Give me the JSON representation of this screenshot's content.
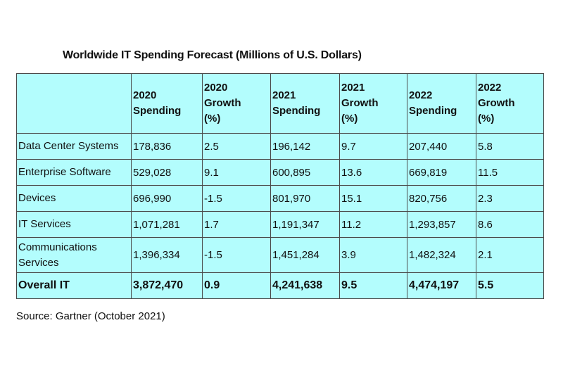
{
  "chart_data": {
    "type": "table",
    "title": "Worldwide IT Spending Forecast (Millions of U.S. Dollars)",
    "columns": [
      "",
      "2020 Spending",
      "2020 Growth (%)",
      "2021 Spending",
      "2021 Growth (%)",
      "2022 Spending",
      "2022 Growth (%)"
    ],
    "header_lines": [
      [],
      [
        "2020",
        "Spending"
      ],
      [
        "2020",
        "Growth",
        "(%)"
      ],
      [
        "2021",
        "Spending"
      ],
      [
        "2021",
        "Growth",
        "(%)"
      ],
      [
        "2022",
        "Spending"
      ],
      [
        "2022",
        "Growth",
        "(%)"
      ]
    ],
    "rows": [
      {
        "category": "Data Center Systems",
        "values": [
          "178,836",
          "2.5",
          "196,142",
          "9.7",
          "207,440",
          "5.8"
        ]
      },
      {
        "category": "Enterprise Software",
        "values": [
          "529,028",
          "9.1",
          "600,895",
          "13.6",
          "669,819",
          "11.5"
        ]
      },
      {
        "category": "Devices",
        "values": [
          "696,990",
          "-1.5",
          "801,970",
          "15.1",
          "820,756",
          "2.3"
        ]
      },
      {
        "category": "IT Services",
        "values": [
          "1,071,281",
          "1.7",
          "1,191,347",
          "11.2",
          "1,293,857",
          "8.6"
        ]
      },
      {
        "category": "Communications Services",
        "values": [
          "1,396,334",
          "-1.5",
          "1,451,284",
          "3.9",
          "1,482,324",
          "2.1"
        ]
      }
    ],
    "total": {
      "category": "Overall IT",
      "values": [
        "3,872,470",
        "0.9",
        "4,241,638",
        "9.5",
        "4,474,197",
        "5.5"
      ]
    },
    "source": "Source: Gartner (October 2021)"
  },
  "colors": {
    "cell_background": "#b3fdfd",
    "border": "#4a4a4a",
    "text": "#111111"
  }
}
